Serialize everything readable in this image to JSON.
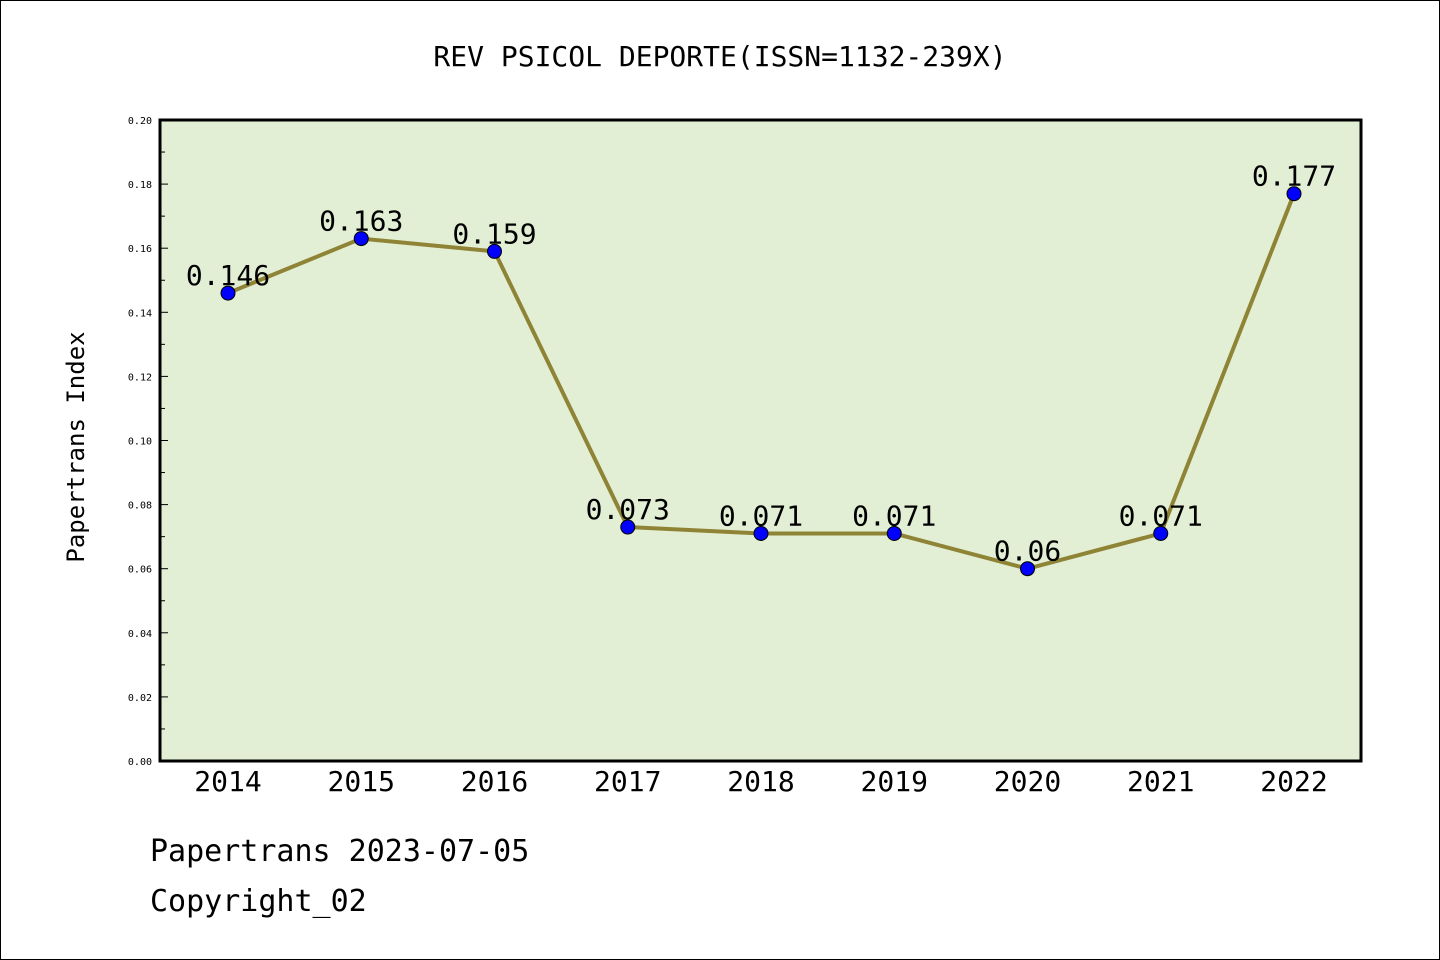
{
  "chart_data": {
    "type": "line",
    "title": "REV PSICOL DEPORTE(ISSN=1132-239X)",
    "xlabel": "",
    "ylabel": "Papertrans Index",
    "x": [
      "2014",
      "2015",
      "2016",
      "2017",
      "2018",
      "2019",
      "2020",
      "2021",
      "2022"
    ],
    "series": [
      {
        "values": [
          0.146,
          0.163,
          0.159,
          0.073,
          0.071,
          0.071,
          0.06,
          0.071,
          0.177
        ]
      }
    ],
    "data_labels": [
      "0.146",
      "0.163",
      "0.159",
      "0.073",
      "0.071",
      "0.071",
      "0.06",
      "0.071",
      "0.177"
    ],
    "ylim": [
      0,
      0.2
    ],
    "yticks": [
      "0.00",
      "0.02",
      "0.04",
      "0.06",
      "0.08",
      "0.10",
      "0.12",
      "0.14",
      "0.16",
      "0.18",
      "0.20"
    ],
    "grid": false,
    "colors": {
      "plot_bg": "#e2efd5",
      "line": "#8f8436",
      "marker": "#0000ff"
    }
  },
  "footer": {
    "line1": "Papertrans 2023-07-05",
    "line2": "Copyright_02"
  }
}
